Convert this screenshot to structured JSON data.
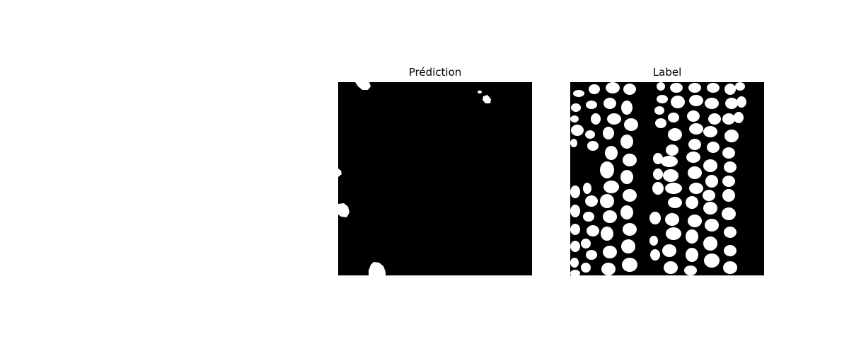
{
  "figure": {
    "panels": [
      {
        "title": "Prédiction"
      },
      {
        "title": "Label"
      }
    ]
  },
  "colors": {
    "background": "#000000",
    "foreground": "#ffffff"
  }
}
